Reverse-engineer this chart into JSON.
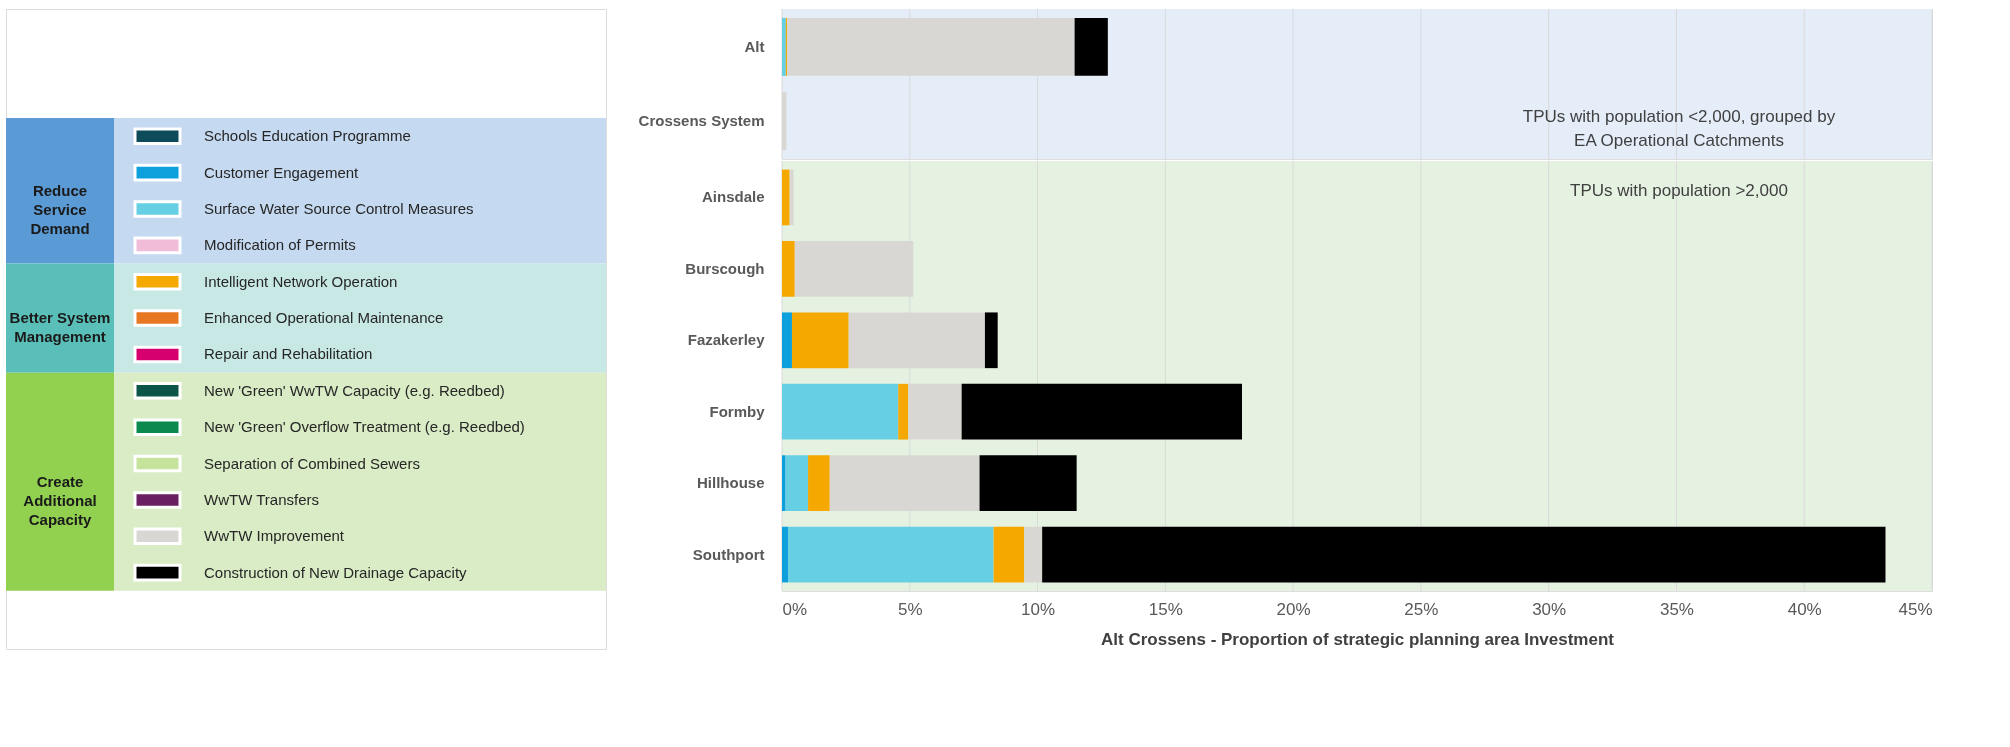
{
  "chart_data": [
    {
      "type": "bar",
      "orientation": "horizontal",
      "stacked": true,
      "categories": [
        "Alt",
        "Crossens System"
      ],
      "series": [
        {
          "color": "#0d4a5a",
          "values": [
            null,
            null
          ]
        },
        {
          "color": "#0ea0dc",
          "values": [
            null,
            null
          ]
        },
        {
          "color": "#66cfe3",
          "values": [
            0.15,
            null
          ]
        },
        {
          "color": "#f0bcd8",
          "values": [
            null,
            null
          ]
        },
        {
          "color": "#f5a800",
          "values": [
            0.05,
            null
          ]
        },
        {
          "color": "#e87722",
          "values": [
            null,
            null
          ]
        },
        {
          "color": "#d6006e",
          "values": [
            null,
            null
          ]
        },
        {
          "color": "#0c5448",
          "values": [
            null,
            null
          ]
        },
        {
          "color": "#0b8a4f",
          "values": [
            null,
            null
          ]
        },
        {
          "color": "#c6e39c",
          "values": [
            null,
            null
          ]
        },
        {
          "color": "#6b1f63",
          "values": [
            null,
            null
          ]
        },
        {
          "color": "#d9d7d4",
          "values": [
            11.25,
            0.17
          ]
        },
        {
          "color": "#000000",
          "values": [
            1.3,
            null
          ]
        }
      ],
      "xlim": [
        0,
        45
      ],
      "xticks": [
        {
          "value": 0,
          "label": null
        },
        {
          "value": 5,
          "label": null
        },
        {
          "value": 10,
          "label": null
        },
        {
          "value": 15,
          "label": null
        },
        {
          "value": 20,
          "label": null
        },
        {
          "value": 25,
          "label": null
        },
        {
          "value": 30,
          "label": null
        },
        {
          "value": 35,
          "label": null
        },
        {
          "value": 40,
          "label": null
        },
        {
          "value": 45,
          "label": null
        }
      ],
      "tick_labels": "y",
      "grid": "x",
      "bands": [
        {
          "axis": "x",
          "from": 0,
          "to": 45,
          "color": "#e4edf8",
          "label": "TPUs with population <2,000, grouped by EA Operational Catchments"
        }
      ]
    },
    {
      "type": "bar",
      "orientation": "horizontal",
      "stacked": true,
      "categories": [
        "Ainsdale",
        "Burscough",
        "Fazakerley",
        "Formby",
        "Hillhouse",
        "Southport"
      ],
      "xlabel": "Alt Crossens - Proportion of strategic planning area Investment",
      "series": [
        {
          "name": "Schools Education Programme",
          "color": "#0d4a5a",
          "values": [
            null,
            null,
            null,
            null,
            null,
            null
          ]
        },
        {
          "name": "Customer Engagement",
          "color": "#0ea0dc",
          "values": [
            null,
            null,
            0.39,
            null,
            0.14,
            0.24
          ]
        },
        {
          "name": "Surface Water Source Control Measures",
          "color": "#66cfe3",
          "values": [
            null,
            null,
            null,
            4.55,
            0.88,
            8.04
          ]
        },
        {
          "name": "Modification of Permits",
          "color": "#f0bcd8",
          "values": [
            null,
            null,
            null,
            null,
            null,
            null
          ]
        },
        {
          "name": "Intelligent Network Operation",
          "color": "#f5a800",
          "values": [
            0.3,
            0.5,
            2.22,
            0.39,
            0.85,
            1.2
          ]
        },
        {
          "name": "Enhanced Operational Maintenance",
          "color": "#e87722",
          "values": [
            null,
            null,
            null,
            null,
            null,
            null
          ]
        },
        {
          "name": "Repair and Rehabilitation",
          "color": "#d6006e",
          "values": [
            null,
            null,
            null,
            null,
            null,
            null
          ]
        },
        {
          "name": "New 'Green' WwTW Capacity (e.g. Reedbed)",
          "color": "#0c5448",
          "values": [
            null,
            null,
            null,
            null,
            null,
            null
          ]
        },
        {
          "name": "New 'Green' Overflow Treatment (e.g. Reedbed)",
          "color": "#0b8a4f",
          "values": [
            null,
            null,
            null,
            null,
            null,
            null
          ]
        },
        {
          "name": "Separation of Combined Sewers",
          "color": "#c6e39c",
          "values": [
            null,
            null,
            null,
            null,
            null,
            null
          ]
        },
        {
          "name": "WwTW Transfers",
          "color": "#6b1f63",
          "values": [
            null,
            null,
            null,
            null,
            null,
            null
          ]
        },
        {
          "name": "WwTW Improvement",
          "color": "#d9d7d4",
          "values": [
            0.15,
            4.64,
            5.33,
            2.09,
            5.86,
            0.7
          ]
        },
        {
          "name": "Construction of New Drainage Capacity",
          "color": "#000000",
          "values": [
            null,
            null,
            0.5,
            10.97,
            3.8,
            33.0
          ]
        }
      ],
      "xlim": [
        0,
        45
      ],
      "xticks": [
        {
          "value": 0,
          "label": "0%"
        },
        {
          "value": 5,
          "label": "5%"
        },
        {
          "value": 10,
          "label": "10%"
        },
        {
          "value": 15,
          "label": "15%"
        },
        {
          "value": 20,
          "label": "20%"
        },
        {
          "value": 25,
          "label": "25%"
        },
        {
          "value": 30,
          "label": "30%"
        },
        {
          "value": 35,
          "label": "35%"
        },
        {
          "value": 40,
          "label": "40%"
        },
        {
          "value": 45,
          "label": "45%"
        }
      ],
      "grid": "x",
      "legend": "left",
      "bands": [
        {
          "axis": "x",
          "from": 0,
          "to": 45,
          "color": "#e6f2e1",
          "label": "TPUs with population >2,000"
        }
      ],
      "annotations": [
        "Reduce Service Demand",
        "Better System Management",
        "Create Additional Capacity"
      ]
    }
  ]
}
